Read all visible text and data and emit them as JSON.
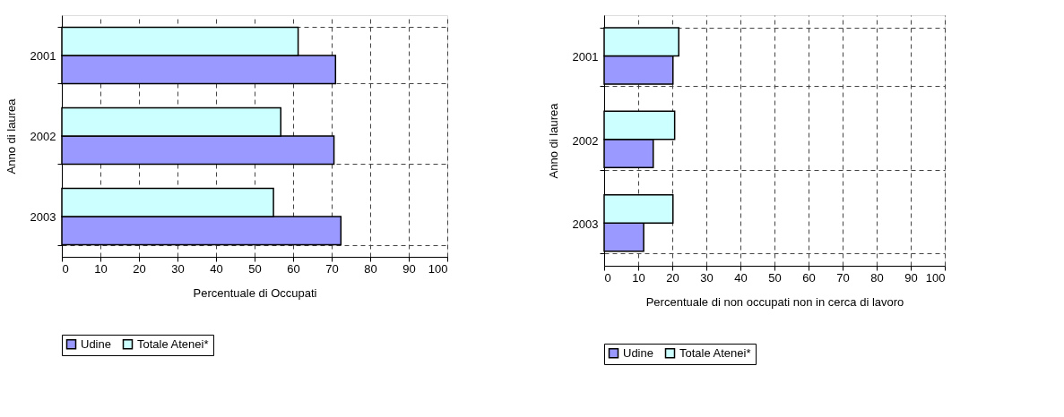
{
  "chart_data": [
    {
      "type": "bar",
      "orientation": "horizontal",
      "xlabel": "Percentuale di Occupati",
      "ylabel": "Anno di laurea",
      "categories": [
        "2001",
        "2002",
        "2003"
      ],
      "xlim": [
        0,
        100
      ],
      "xticks": [
        0,
        10,
        20,
        30,
        40,
        50,
        60,
        70,
        80,
        90,
        100
      ],
      "grid": true,
      "legend": "bottom",
      "series": [
        {
          "name": "Udine",
          "color": "#9999ff",
          "values": [
            71.0,
            70.6,
            72.4
          ]
        },
        {
          "name": "Totale Atenei*",
          "color": "#ccffff",
          "values": [
            61.3,
            56.8,
            54.9
          ]
        }
      ]
    },
    {
      "type": "bar",
      "orientation": "horizontal",
      "xlabel": "Percentuale di non occupati non in cerca di lavoro",
      "ylabel": "Anno di laurea",
      "categories": [
        "2001",
        "2002",
        "2003"
      ],
      "xlim": [
        0,
        100
      ],
      "xticks": [
        0,
        10,
        20,
        30,
        40,
        50,
        60,
        70,
        80,
        90,
        100
      ],
      "grid": true,
      "legend": "bottom",
      "series": [
        {
          "name": "Udine",
          "color": "#9999ff",
          "values": [
            20.2,
            14.4,
            11.6
          ]
        },
        {
          "name": "Totale Atenei*",
          "color": "#ccffff",
          "values": [
            21.9,
            20.7,
            20.2
          ]
        }
      ]
    }
  ]
}
